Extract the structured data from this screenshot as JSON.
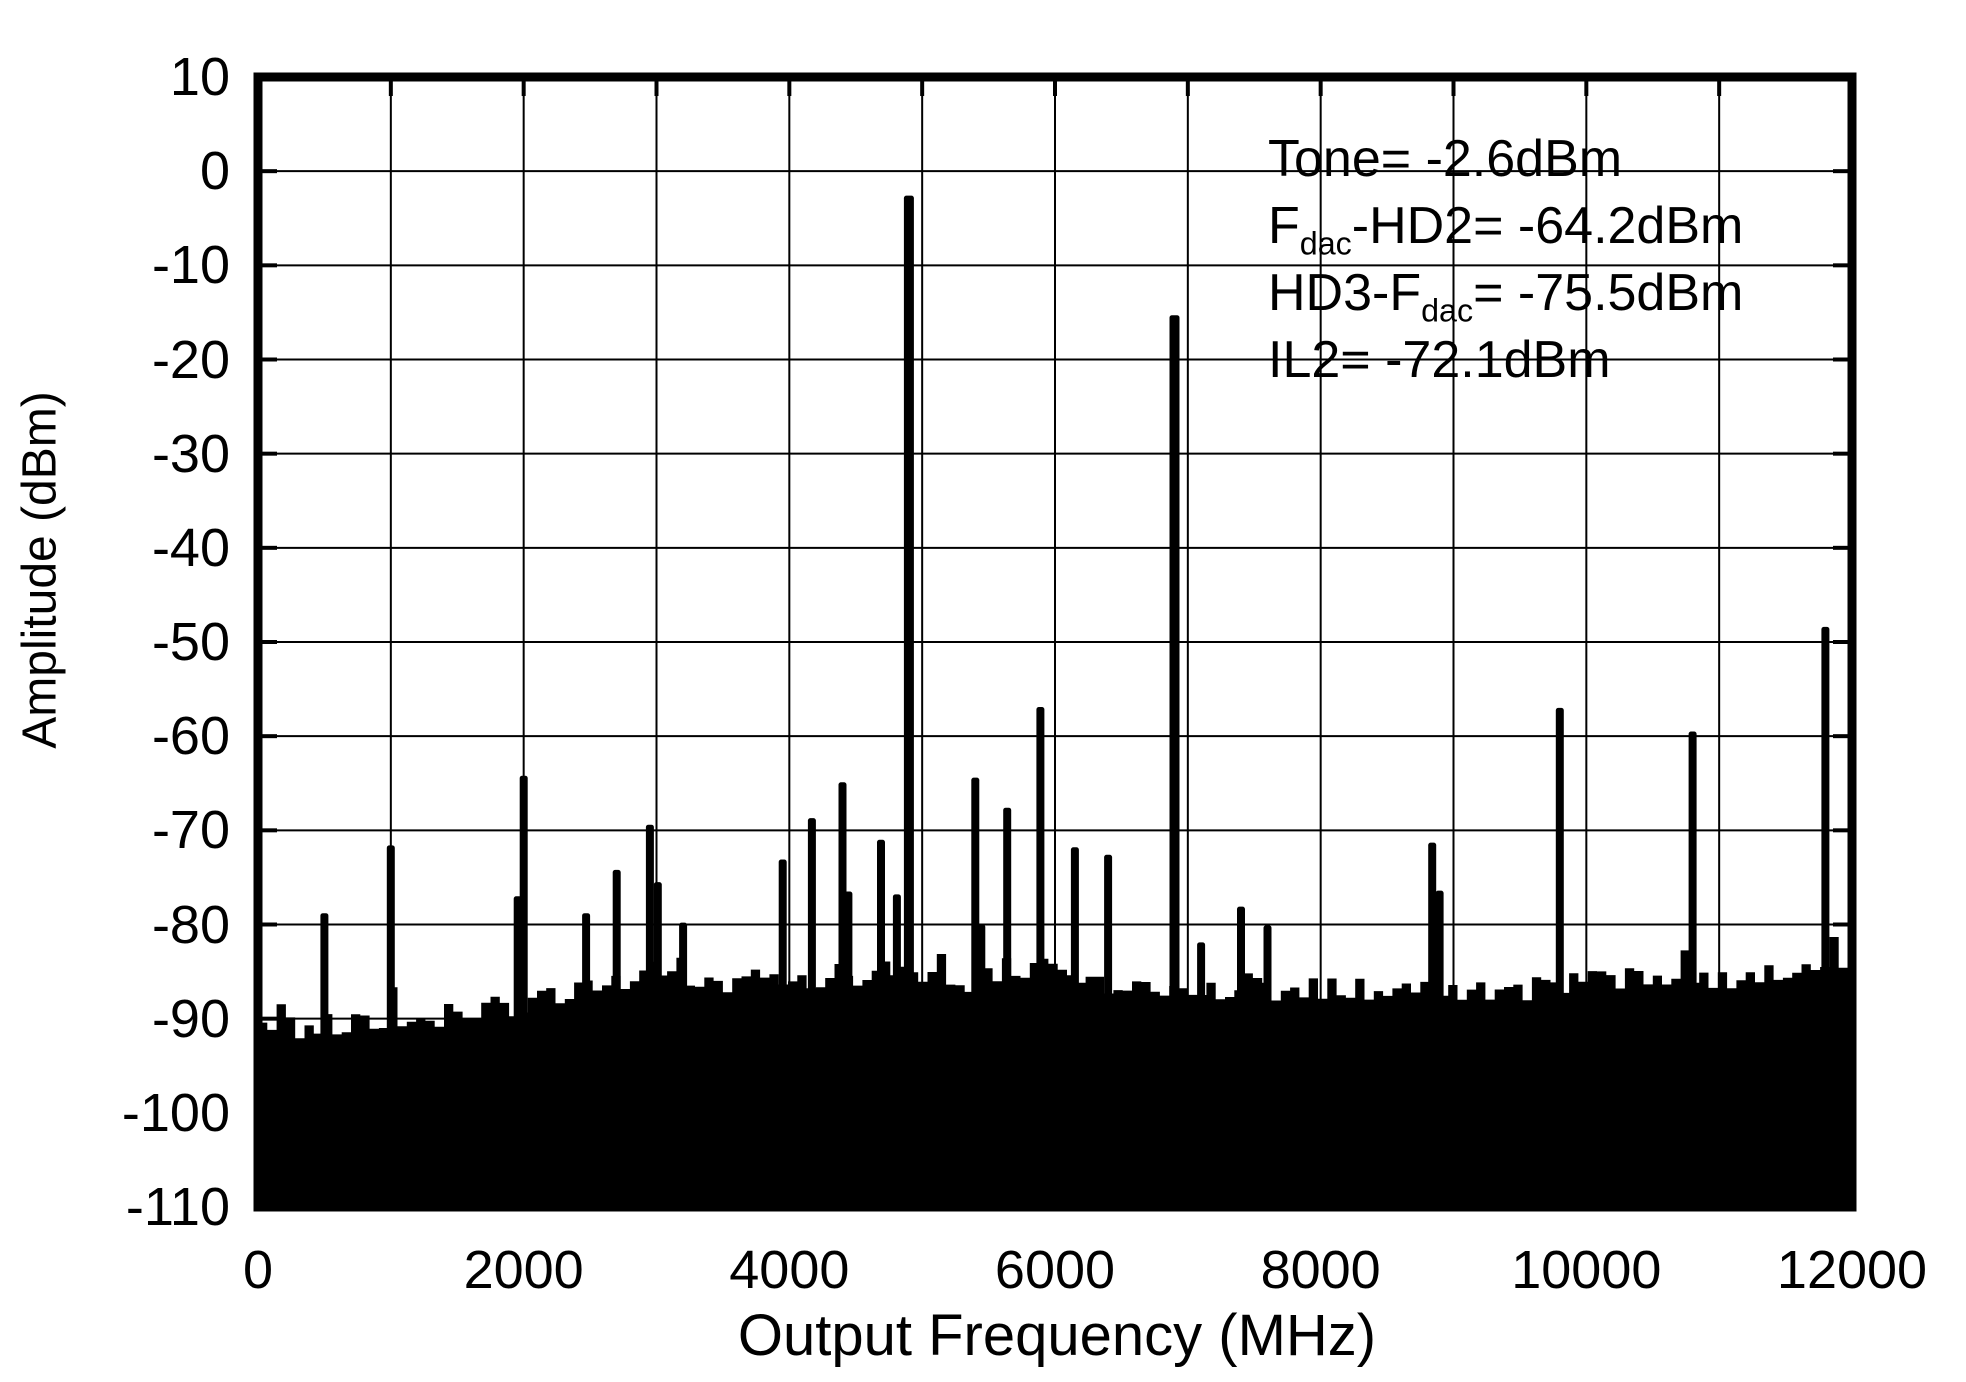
{
  "chart_data": {
    "type": "area",
    "subtype": "frequency-spectrum",
    "title": "",
    "xlabel": "Output Frequency (MHz)",
    "ylabel": "Amplitude (dBm)",
    "xlim": [
      0,
      12000
    ],
    "ylim": [
      -110,
      10
    ],
    "x_tick_labels": [
      "0",
      "2000",
      "4000",
      "6000",
      "8000",
      "10000",
      "12000"
    ],
    "x_grid_step_mhz": 1000,
    "y_tick_labels": [
      "10",
      "0",
      "-10",
      "-20",
      "-30",
      "-40",
      "-50",
      "-60",
      "-70",
      "-80",
      "-90",
      "-100",
      "-110"
    ],
    "grid": true,
    "legend": "none",
    "series_color": "#000000",
    "background_color": "#ffffff",
    "annotations": [
      {
        "parts": [
          {
            "text": "Tone= -2.6dBm"
          }
        ]
      },
      {
        "parts": [
          {
            "text": "F"
          },
          {
            "text": "dac",
            "sub": true
          },
          {
            "text": "-HD2= -64.2dBm"
          }
        ]
      },
      {
        "parts": [
          {
            "text": "HD3-F"
          },
          {
            "text": "dac",
            "sub": true
          },
          {
            "text": "= -75.5dBm"
          }
        ]
      },
      {
        "parts": [
          {
            "text": "IL2= -72.1dBm"
          }
        ]
      }
    ],
    "tone": {
      "freq_mhz": 4900,
      "amp_dbm": -2.6
    },
    "spurs": [
      {
        "f": 500,
        "a": -78.8
      },
      {
        "f": 1000,
        "a": -71.6
      },
      {
        "f": 1955,
        "a": -77.0
      },
      {
        "f": 2000,
        "a": -64.2
      },
      {
        "f": 2470,
        "a": -78.8
      },
      {
        "f": 2700,
        "a": -74.2
      },
      {
        "f": 2950,
        "a": -69.4
      },
      {
        "f": 3010,
        "a": -75.5
      },
      {
        "f": 3200,
        "a": -79.8
      },
      {
        "f": 3950,
        "a": -73.1
      },
      {
        "f": 4170,
        "a": -68.7
      },
      {
        "f": 4400,
        "a": -64.9
      },
      {
        "f": 4445,
        "a": -76.5
      },
      {
        "f": 4690,
        "a": -71.0
      },
      {
        "f": 4810,
        "a": -76.8
      },
      {
        "f": 4900,
        "a": -2.6
      },
      {
        "f": 5400,
        "a": -64.4
      },
      {
        "f": 5445,
        "a": -80.0
      },
      {
        "f": 5640,
        "a": -67.6
      },
      {
        "f": 5890,
        "a": -56.9
      },
      {
        "f": 6150,
        "a": -71.8
      },
      {
        "f": 6400,
        "a": -72.6
      },
      {
        "f": 6900,
        "a": -15.3
      },
      {
        "f": 7100,
        "a": -81.9
      },
      {
        "f": 7400,
        "a": -78.1
      },
      {
        "f": 7600,
        "a": -80.1
      },
      {
        "f": 8840,
        "a": -71.3
      },
      {
        "f": 8895,
        "a": -76.4
      },
      {
        "f": 9800,
        "a": -57.0
      },
      {
        "f": 10800,
        "a": -59.5
      },
      {
        "f": 11800,
        "a": -48.4
      }
    ],
    "noise_floor_envelope": [
      {
        "f": 0,
        "a": -90.3
      },
      {
        "f": 300,
        "a": -90.0
      },
      {
        "f": 600,
        "a": -89.7
      },
      {
        "f": 900,
        "a": -89.4
      },
      {
        "f": 1200,
        "a": -89.0
      },
      {
        "f": 1500,
        "a": -88.6
      },
      {
        "f": 1800,
        "a": -88.1
      },
      {
        "f": 2100,
        "a": -87.3
      },
      {
        "f": 2400,
        "a": -86.4
      },
      {
        "f": 2600,
        "a": -85.8
      },
      {
        "f": 2800,
        "a": -84.9
      },
      {
        "f": 2950,
        "a": -84.1
      },
      {
        "f": 3100,
        "a": -84.3
      },
      {
        "f": 3300,
        "a": -85.0
      },
      {
        "f": 3600,
        "a": -85.4
      },
      {
        "f": 3900,
        "a": -85.1
      },
      {
        "f": 4200,
        "a": -84.8
      },
      {
        "f": 4500,
        "a": -84.5
      },
      {
        "f": 4800,
        "a": -84.7
      },
      {
        "f": 5100,
        "a": -84.9
      },
      {
        "f": 5400,
        "a": -85.1
      },
      {
        "f": 5700,
        "a": -84.8
      },
      {
        "f": 5950,
        "a": -84.3
      },
      {
        "f": 6100,
        "a": -84.7
      },
      {
        "f": 6300,
        "a": -85.2
      },
      {
        "f": 6550,
        "a": -86.0
      },
      {
        "f": 6750,
        "a": -86.5
      },
      {
        "f": 7000,
        "a": -86.1
      },
      {
        "f": 7300,
        "a": -85.9
      },
      {
        "f": 7600,
        "a": -86.1
      },
      {
        "f": 7900,
        "a": -85.8
      },
      {
        "f": 8200,
        "a": -86.0
      },
      {
        "f": 8500,
        "a": -86.1
      },
      {
        "f": 8800,
        "a": -86.2
      },
      {
        "f": 9100,
        "a": -86.4
      },
      {
        "f": 9400,
        "a": -86.2
      },
      {
        "f": 9700,
        "a": -85.9
      },
      {
        "f": 10000,
        "a": -85.4
      },
      {
        "f": 10300,
        "a": -85.0
      },
      {
        "f": 10600,
        "a": -84.9
      },
      {
        "f": 10900,
        "a": -85.0
      },
      {
        "f": 11200,
        "a": -84.7
      },
      {
        "f": 11500,
        "a": -84.5
      },
      {
        "f": 11800,
        "a": -84.3
      },
      {
        "f": 12000,
        "a": -84.1
      }
    ]
  }
}
